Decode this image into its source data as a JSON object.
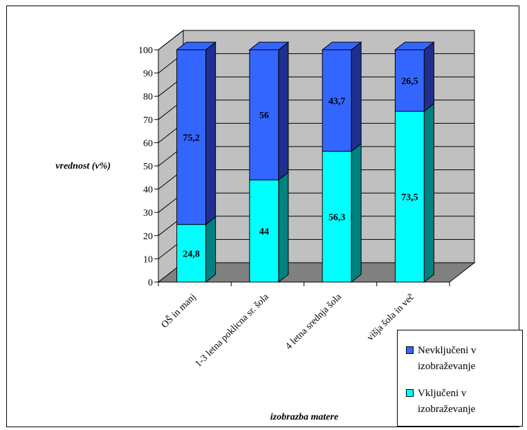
{
  "chart_data": {
    "type": "bar",
    "stacked": true,
    "three_d": true,
    "xlabel": "izobrazba matere",
    "ylabel": "vrednost (v%)",
    "ylim": [
      0,
      100
    ],
    "yticks": [
      0,
      10,
      20,
      30,
      40,
      50,
      60,
      70,
      80,
      90,
      100
    ],
    "grid": true,
    "legend_position": "bottom-right",
    "categories": [
      "OŠ in manj",
      "1-3 letna poklicna sr. šola",
      "4 letna srednja šola",
      "višja šola in več"
    ],
    "series": [
      {
        "name": "Vključeni v izobraževanje",
        "values": [
          24.8,
          44,
          56.3,
          73.5
        ],
        "labels": [
          "24,8",
          "44",
          "56,3",
          "73,5"
        ],
        "color": "#00ffff",
        "side_color": "#008080"
      },
      {
        "name": "Nevključeni v izobraževanje",
        "values": [
          75.2,
          56,
          43.7,
          26.5
        ],
        "labels": [
          "75,2",
          "56",
          "43,7",
          "26,5"
        ],
        "color": "#3366ff",
        "side_color": "#1f2f8f"
      }
    ],
    "wall_color": "#c0c0c0",
    "floor_color": "#808080"
  }
}
